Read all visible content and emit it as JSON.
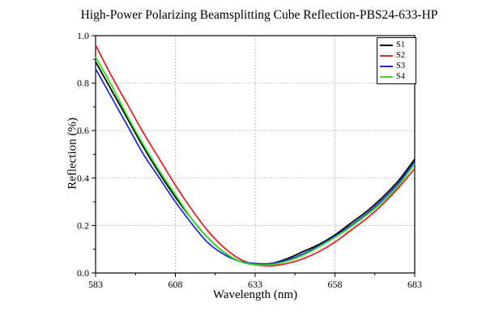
{
  "chart_data": {
    "type": "line",
    "title": "High-Power Polarizing Beamsplitting Cube Reflection-PBS24-633-HP",
    "xlabel": "Wavelength (nm)",
    "ylabel": "Reflection (%)",
    "xlim": [
      583,
      683
    ],
    "ylim": [
      0.0,
      1.0
    ],
    "xticks": [
      583,
      608,
      633,
      658,
      683
    ],
    "yticks": [
      "0.0",
      "0.2",
      "0.4",
      "0.6",
      "0.8",
      "1.0"
    ],
    "grid": true,
    "legend_position": "top-right",
    "series": [
      {
        "name": "S1",
        "color": "#000000",
        "x": [
          583,
          588,
          593,
          598,
          603,
          608,
          613,
          618,
          623,
          628,
          633,
          638,
          643,
          648,
          653,
          658,
          663,
          668,
          673,
          678,
          683
        ],
        "y": [
          0.89,
          0.77,
          0.65,
          0.53,
          0.42,
          0.32,
          0.23,
          0.15,
          0.09,
          0.05,
          0.035,
          0.04,
          0.06,
          0.09,
          0.12,
          0.16,
          0.21,
          0.26,
          0.32,
          0.39,
          0.48
        ]
      },
      {
        "name": "S2",
        "color": "#e8231f",
        "x": [
          583,
          588,
          593,
          598,
          603,
          608,
          613,
          618,
          623,
          628,
          633,
          638,
          643,
          648,
          653,
          658,
          663,
          668,
          673,
          678,
          683
        ],
        "y": [
          0.96,
          0.83,
          0.71,
          0.59,
          0.48,
          0.37,
          0.27,
          0.18,
          0.11,
          0.06,
          0.035,
          0.03,
          0.04,
          0.06,
          0.09,
          0.13,
          0.18,
          0.23,
          0.29,
          0.36,
          0.44
        ]
      },
      {
        "name": "S3",
        "color": "#1f2fd8",
        "x": [
          583,
          588,
          593,
          598,
          603,
          608,
          613,
          618,
          623,
          628,
          633,
          638,
          643,
          648,
          653,
          658,
          663,
          668,
          673,
          678,
          683
        ],
        "y": [
          0.86,
          0.74,
          0.62,
          0.5,
          0.4,
          0.3,
          0.21,
          0.13,
          0.08,
          0.05,
          0.04,
          0.04,
          0.055,
          0.08,
          0.115,
          0.155,
          0.2,
          0.25,
          0.31,
          0.38,
          0.47
        ]
      },
      {
        "name": "S4",
        "color": "#2ee01f",
        "x": [
          583,
          588,
          593,
          598,
          603,
          608,
          613,
          618,
          623,
          628,
          633,
          638,
          643,
          648,
          653,
          658,
          663,
          668,
          673,
          678,
          683
        ],
        "y": [
          0.91,
          0.79,
          0.66,
          0.54,
          0.43,
          0.33,
          0.23,
          0.15,
          0.09,
          0.05,
          0.035,
          0.035,
          0.05,
          0.075,
          0.11,
          0.15,
          0.195,
          0.245,
          0.3,
          0.37,
          0.46
        ]
      }
    ]
  }
}
